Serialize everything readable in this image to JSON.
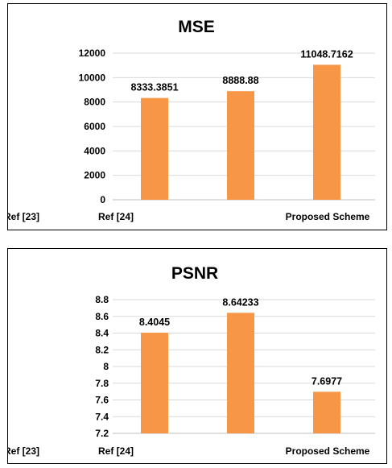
{
  "chart_data": [
    {
      "type": "bar",
      "title": "MSE",
      "categories": [
        "Ref [23]",
        "Ref [24]",
        "Proposed Scheme"
      ],
      "values": [
        8333.3851,
        8888.88,
        11048.7162
      ],
      "value_labels": [
        "8333.3851",
        "8888.88",
        "11048.7162"
      ],
      "ylim": [
        0,
        12000
      ],
      "yticks": [
        "0",
        "2000",
        "4000",
        "6000",
        "8000",
        "10000",
        "12000"
      ],
      "ytick_values": [
        0,
        2000,
        4000,
        6000,
        8000,
        10000,
        12000
      ],
      "grid": true,
      "bar_color": "#F79646"
    },
    {
      "type": "bar",
      "title": "PSNR",
      "categories": [
        "Ref [23]",
        "Ref [24]",
        "Proposed Scheme"
      ],
      "values": [
        8.4045,
        8.64233,
        7.6977
      ],
      "value_labels": [
        "8.4045",
        "8.64233",
        "7.6977"
      ],
      "ylim": [
        7.2,
        8.8
      ],
      "yticks": [
        "7.2",
        "7.4",
        "7.6",
        "7.8",
        "8",
        "8.2",
        "8.4",
        "8.6",
        "8.8"
      ],
      "ytick_values": [
        7.2,
        7.4,
        7.6,
        7.8,
        8.0,
        8.2,
        8.4,
        8.6,
        8.8
      ],
      "grid": true,
      "bar_color": "#F79646"
    }
  ]
}
